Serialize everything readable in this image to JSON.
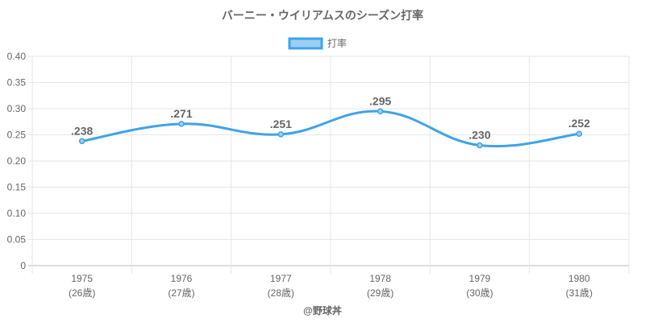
{
  "chart_data": {
    "type": "line",
    "title": "バーニー・ウイリアムスのシーズン打率",
    "categories": [
      "1975",
      "1976",
      "1977",
      "1978",
      "1979",
      "1980"
    ],
    "category_sublabels": [
      "(26歳)",
      "(27歳)",
      "(28歳)",
      "(29歳)",
      "(30歳)",
      "(31歳)"
    ],
    "series": [
      {
        "name": "打率",
        "values": [
          0.238,
          0.271,
          0.251,
          0.295,
          0.23,
          0.252
        ],
        "data_labels": [
          ".238",
          ".271",
          ".251",
          ".295",
          ".230",
          ".252"
        ],
        "color": "#3ea3e8"
      }
    ],
    "ylim": [
      0,
      0.4
    ],
    "yticks": [
      "0",
      "0.05",
      "0.10",
      "0.15",
      "0.20",
      "0.25",
      "0.30",
      "0.35",
      "0.40"
    ],
    "grid": true,
    "legend_position": "top-center",
    "xlabel": "",
    "ylabel": ""
  },
  "footer": "@野球丼"
}
